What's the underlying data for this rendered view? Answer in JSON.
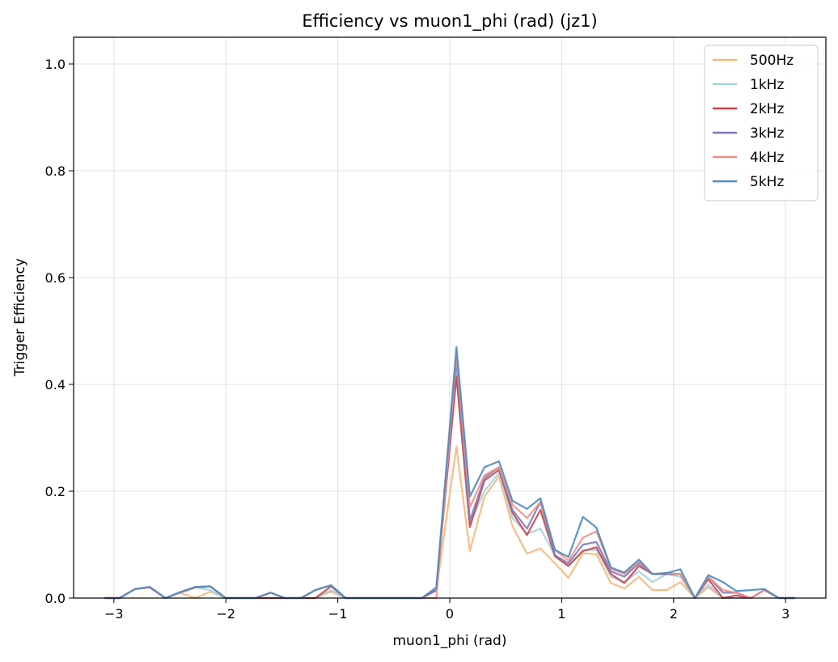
{
  "chart_data": {
    "type": "line",
    "title": "Efficiency vs muon1_phi (rad) (jz1)",
    "xlabel": "muon1_phi (rad)",
    "ylabel": "Trigger Efficiency",
    "xlim": [
      -3.36,
      3.36
    ],
    "ylim": [
      0,
      1.05
    ],
    "xticks": [
      -3,
      -2,
      -1,
      0,
      1,
      2,
      3
    ],
    "xtick_labels": [
      "−3",
      "−2",
      "−1",
      "0",
      "1",
      "2",
      "3"
    ],
    "yticks": [
      0.0,
      0.2,
      0.4,
      0.6,
      0.8,
      1.0
    ],
    "ytick_labels": [
      "0.0",
      "0.2",
      "0.4",
      "0.6",
      "0.8",
      "1.0"
    ],
    "grid": true,
    "legend": "top-right",
    "x": [
      -3.08,
      -2.95,
      -2.81,
      -2.68,
      -2.54,
      -2.41,
      -2.27,
      -2.14,
      -2.0,
      -1.87,
      -1.74,
      -1.6,
      -1.47,
      -1.33,
      -1.2,
      -1.06,
      -0.93,
      -0.79,
      -0.66,
      -0.52,
      -0.39,
      -0.25,
      -0.12,
      0.06,
      0.18,
      0.31,
      0.44,
      0.56,
      0.69,
      0.81,
      0.94,
      1.06,
      1.19,
      1.31,
      1.44,
      1.56,
      1.69,
      1.81,
      1.94,
      2.06,
      2.19,
      2.31,
      2.44,
      2.56,
      2.69,
      2.81,
      2.94,
      3.08
    ],
    "series": [
      {
        "name": "500Hz",
        "color": "#f5b77a",
        "values": [
          0.0,
          0.0,
          0.017,
          0.02,
          0.0,
          0.01,
          0.0,
          0.012,
          0.0,
          0.0,
          0.0,
          0.0,
          0.0,
          0.0,
          0.0,
          0.012,
          0.0,
          0.0,
          0.0,
          0.0,
          0.0,
          0.0,
          0.014,
          0.284,
          0.088,
          0.19,
          0.228,
          0.135,
          0.083,
          0.093,
          0.065,
          0.038,
          0.084,
          0.082,
          0.028,
          0.018,
          0.04,
          0.015,
          0.015,
          0.03,
          0.0,
          0.02,
          0.0,
          0.0,
          0.0,
          0.015,
          0.0,
          0.0
        ]
      },
      {
        "name": "1kHz",
        "color": "#a3d3df",
        "values": [
          0.0,
          0.0,
          0.017,
          0.02,
          0.0,
          0.01,
          0.02,
          0.015,
          0.0,
          0.0,
          0.0,
          0.0,
          0.0,
          0.0,
          0.0,
          0.015,
          0.0,
          0.0,
          0.0,
          0.0,
          0.0,
          0.0,
          0.015,
          0.42,
          0.14,
          0.2,
          0.235,
          0.15,
          0.12,
          0.13,
          0.08,
          0.06,
          0.09,
          0.09,
          0.04,
          0.03,
          0.05,
          0.03,
          0.045,
          0.04,
          0.0,
          0.025,
          0.0,
          0.0,
          0.0,
          0.015,
          0.0,
          0.0
        ]
      },
      {
        "name": "2kHz",
        "color": "#c8464c",
        "values": [
          0.0,
          0.0,
          0.017,
          0.02,
          0.0,
          0.01,
          0.02,
          0.022,
          0.0,
          0.0,
          0.0,
          0.0,
          0.0,
          0.0,
          0.0,
          0.022,
          0.0,
          0.0,
          0.0,
          0.0,
          0.0,
          0.0,
          0.015,
          0.415,
          0.133,
          0.22,
          0.24,
          0.16,
          0.118,
          0.165,
          0.078,
          0.06,
          0.088,
          0.095,
          0.045,
          0.028,
          0.06,
          0.045,
          0.045,
          0.045,
          0.0,
          0.035,
          0.0,
          0.005,
          0.0,
          0.015,
          0.0,
          0.0
        ]
      },
      {
        "name": "3kHz",
        "color": "#8079b8",
        "values": [
          0.0,
          0.0,
          0.017,
          0.02,
          0.0,
          0.01,
          0.02,
          0.022,
          0.0,
          0.0,
          0.0,
          0.01,
          0.0,
          0.0,
          0.015,
          0.024,
          0.0,
          0.0,
          0.0,
          0.0,
          0.0,
          0.0,
          0.015,
          0.445,
          0.145,
          0.225,
          0.245,
          0.165,
          0.13,
          0.18,
          0.08,
          0.065,
          0.1,
          0.105,
          0.05,
          0.04,
          0.065,
          0.045,
          0.045,
          0.045,
          0.0,
          0.04,
          0.01,
          0.01,
          0.0,
          0.015,
          0.0,
          0.0
        ]
      },
      {
        "name": "4kHz",
        "color": "#f28e85",
        "values": [
          0.0,
          0.0,
          0.017,
          0.02,
          0.0,
          0.01,
          0.02,
          0.022,
          0.0,
          0.0,
          0.0,
          0.01,
          0.0,
          0.0,
          0.015,
          0.024,
          0.0,
          0.0,
          0.0,
          0.0,
          0.0,
          0.0,
          0.0,
          0.455,
          0.17,
          0.23,
          0.245,
          0.175,
          0.15,
          0.18,
          0.09,
          0.07,
          0.113,
          0.125,
          0.055,
          0.045,
          0.068,
          0.045,
          0.047,
          0.045,
          0.0,
          0.04,
          0.015,
          0.01,
          0.0,
          0.015,
          0.0,
          0.0
        ]
      },
      {
        "name": "5kHz",
        "color": "#4a8bbf",
        "values": [
          0.0,
          0.0,
          0.017,
          0.021,
          0.0,
          0.011,
          0.021,
          0.022,
          0.0,
          0.0,
          0.0,
          0.01,
          0.0,
          0.0,
          0.015,
          0.024,
          0.0,
          0.0,
          0.0,
          0.0,
          0.0,
          0.0,
          0.02,
          0.47,
          0.19,
          0.245,
          0.256,
          0.182,
          0.167,
          0.187,
          0.09,
          0.077,
          0.152,
          0.132,
          0.057,
          0.048,
          0.072,
          0.045,
          0.047,
          0.054,
          0.0,
          0.043,
          0.03,
          0.013,
          0.015,
          0.017,
          0.0,
          0.0
        ]
      }
    ]
  }
}
